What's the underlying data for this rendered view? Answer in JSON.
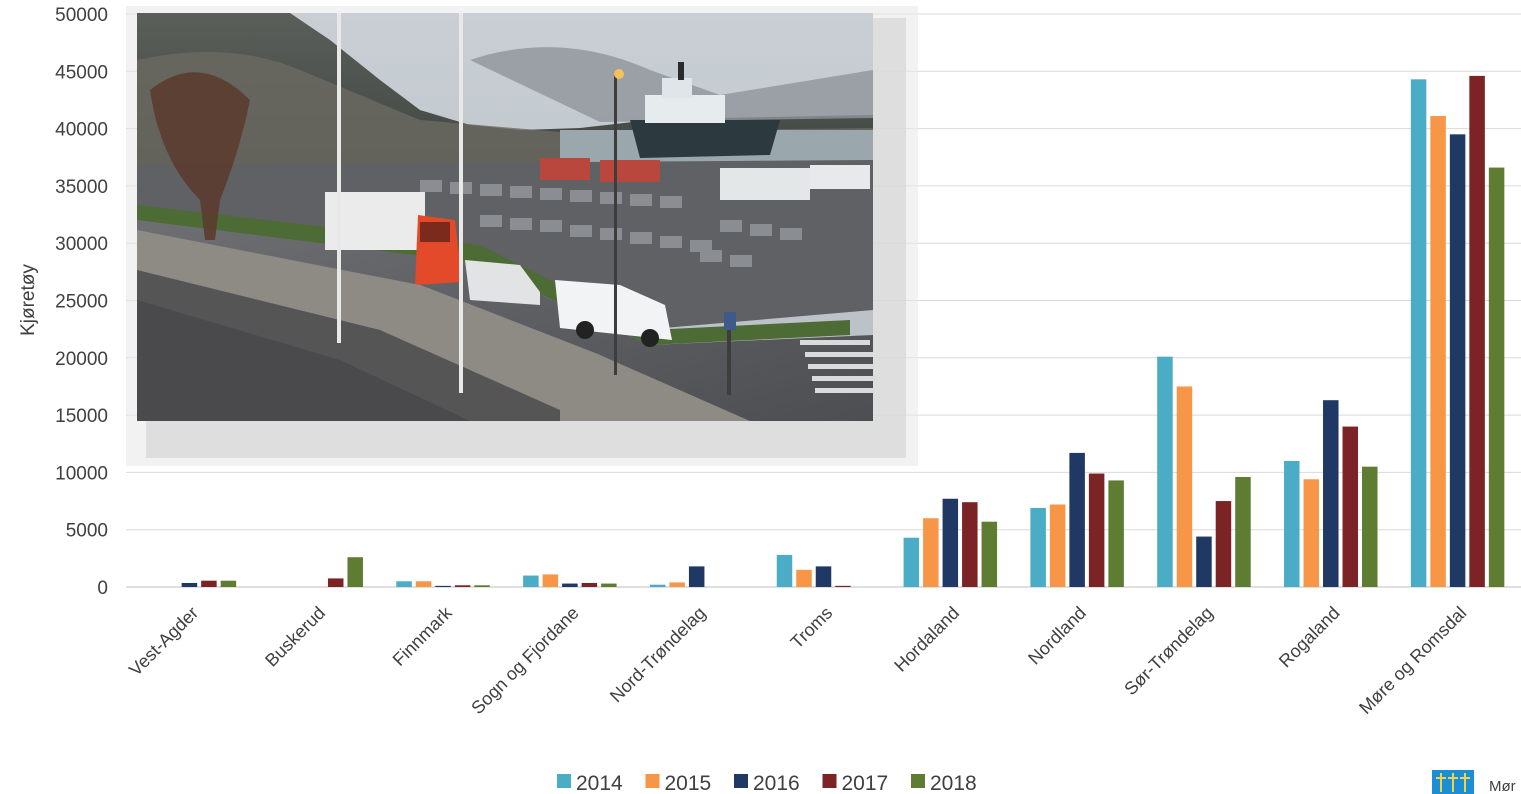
{
  "chart_data": {
    "type": "bar",
    "ylabel": "Kjøretøy",
    "ylim": [
      0,
      50000
    ],
    "yticks": [
      0,
      5000,
      10000,
      15000,
      20000,
      25000,
      30000,
      35000,
      40000,
      45000,
      50000
    ],
    "grid": true,
    "legend_position": "bottom",
    "categories": [
      "Vest-Agder",
      "Buskerud",
      "Finnmark",
      "Sogn og Fjordane",
      "Nord-Trøndelag",
      "Troms",
      "Hordaland",
      "Nordland",
      "Sør-Trøndelag",
      "Rogaland",
      "Møre og Romsdal"
    ],
    "series": [
      {
        "name": "2014",
        "color": "#4bacc6",
        "values": [
          0,
          0,
          500,
          1000,
          200,
          2800,
          4300,
          6900,
          20100,
          11000,
          44300
        ]
      },
      {
        "name": "2015",
        "color": "#f79646",
        "values": [
          0,
          0,
          500,
          1100,
          400,
          1500,
          6000,
          7200,
          17500,
          9400,
          41100
        ]
      },
      {
        "name": "2016",
        "color": "#1f3864",
        "values": [
          350,
          0,
          100,
          300,
          1800,
          1800,
          7700,
          11700,
          4400,
          16300,
          39500
        ]
      },
      {
        "name": "2017",
        "color": "#7b2325",
        "values": [
          550,
          750,
          150,
          350,
          0,
          100,
          7400,
          9900,
          7500,
          14000,
          44600
        ]
      },
      {
        "name": "2018",
        "color": "#5e7d32",
        "values": [
          550,
          2600,
          150,
          300,
          0,
          0,
          5700,
          9300,
          9600,
          10500,
          36600
        ]
      }
    ]
  },
  "photo": {
    "description_icon": "ferry-queue-photo"
  },
  "logo": {
    "icon": "county-crest-icon",
    "text": "Mør"
  }
}
